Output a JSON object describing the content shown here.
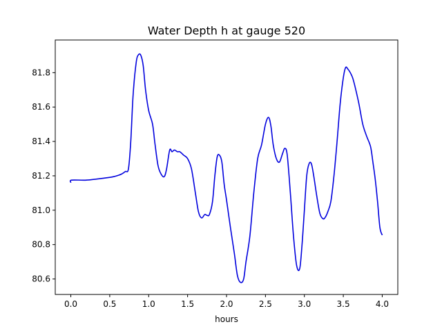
{
  "chart_data": {
    "type": "line",
    "title": "Water Depth h at gauge 520",
    "xlabel": "hours",
    "ylabel": "",
    "xlim": [
      -0.2,
      4.2
    ],
    "ylim": [
      80.51,
      81.99
    ],
    "x_ticks": [
      0.0,
      0.5,
      1.0,
      1.5,
      2.0,
      2.5,
      3.0,
      3.5,
      4.0
    ],
    "x_tick_labels": [
      "0.0",
      "0.5",
      "1.0",
      "1.5",
      "2.0",
      "2.5",
      "3.0",
      "3.5",
      "4.0"
    ],
    "y_ticks": [
      80.6,
      80.8,
      81.0,
      81.2,
      81.4,
      81.6,
      81.8
    ],
    "y_tick_labels": [
      "80.6",
      "80.8",
      "81.0",
      "81.2",
      "81.4",
      "81.6",
      "81.8"
    ],
    "grid": false,
    "series": [
      {
        "color": "#0000dd",
        "x": [
          0.0,
          0.01,
          0.2,
          0.4,
          0.55,
          0.65,
          0.7,
          0.74,
          0.77,
          0.8,
          0.84,
          0.87,
          0.9,
          0.93,
          0.96,
          1.0,
          1.05,
          1.08,
          1.12,
          1.16,
          1.2,
          1.23,
          1.27,
          1.3,
          1.33,
          1.37,
          1.4,
          1.45,
          1.5,
          1.55,
          1.6,
          1.64,
          1.68,
          1.72,
          1.75,
          1.78,
          1.82,
          1.85,
          1.88,
          1.91,
          1.94,
          1.97,
          2.0,
          2.05,
          2.1,
          2.14,
          2.18,
          2.22,
          2.25,
          2.3,
          2.35,
          2.4,
          2.45,
          2.5,
          2.54,
          2.57,
          2.6,
          2.64,
          2.68,
          2.72,
          2.75,
          2.78,
          2.82,
          2.86,
          2.9,
          2.94,
          2.97,
          3.0,
          3.03,
          3.06,
          3.09,
          3.12,
          3.16,
          3.2,
          3.24,
          3.27,
          3.3,
          3.34,
          3.38,
          3.42,
          3.46,
          3.5,
          3.53,
          3.56,
          3.59,
          3.62,
          3.65,
          3.7,
          3.75,
          3.8,
          3.85,
          3.88,
          3.91,
          3.94,
          3.97,
          4.0
        ],
        "y": [
          81.16,
          81.175,
          81.175,
          81.185,
          81.195,
          81.21,
          81.225,
          81.24,
          81.4,
          81.67,
          81.86,
          81.905,
          81.9,
          81.84,
          81.7,
          81.58,
          81.5,
          81.39,
          81.26,
          81.21,
          81.195,
          81.24,
          81.35,
          81.34,
          81.35,
          81.34,
          81.34,
          81.32,
          81.3,
          81.24,
          81.1,
          80.99,
          80.955,
          80.975,
          80.97,
          80.975,
          81.05,
          81.2,
          81.31,
          81.32,
          81.28,
          81.15,
          81.06,
          80.9,
          80.75,
          80.62,
          80.58,
          80.6,
          80.7,
          80.85,
          81.1,
          81.3,
          81.38,
          81.5,
          81.54,
          81.49,
          81.38,
          81.3,
          81.28,
          81.33,
          81.36,
          81.32,
          81.1,
          80.85,
          80.68,
          80.66,
          80.8,
          81.0,
          81.2,
          81.27,
          81.27,
          81.2,
          81.08,
          80.98,
          80.95,
          80.96,
          80.99,
          81.05,
          81.2,
          81.4,
          81.62,
          81.77,
          81.83,
          81.82,
          81.8,
          81.77,
          81.72,
          81.62,
          81.5,
          81.43,
          81.37,
          81.28,
          81.18,
          81.05,
          80.9,
          80.855
        ]
      }
    ]
  }
}
